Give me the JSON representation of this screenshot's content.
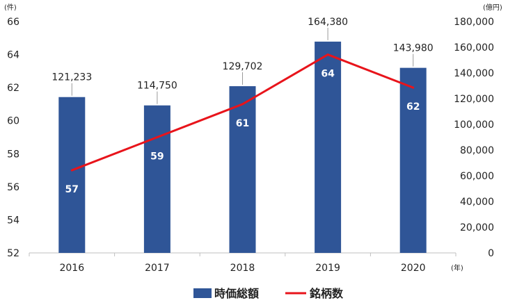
{
  "chart_data": {
    "type": "bar+line",
    "categories": [
      "2016",
      "2017",
      "2018",
      "2019",
      "2020"
    ],
    "series": [
      {
        "name": "時価総額",
        "type": "bar",
        "axis": "right",
        "color": "#2f5597",
        "values": [
          121233,
          114750,
          129702,
          164380,
          143980
        ],
        "labels": [
          "121,233",
          "114,750",
          "129,702",
          "164,380",
          "143,980"
        ]
      },
      {
        "name": "銘柄数",
        "type": "line",
        "axis": "left",
        "color": "#e8141b",
        "values": [
          57,
          59,
          61,
          64,
          62
        ],
        "labels": [
          "57",
          "59",
          "61",
          "64",
          "62"
        ]
      }
    ],
    "left_axis": {
      "unit": "(件)",
      "ylim": [
        52,
        66
      ],
      "ticks": [
        "52",
        "54",
        "56",
        "58",
        "60",
        "62",
        "64",
        "66"
      ]
    },
    "right_axis": {
      "unit": "(億円)",
      "ylim": [
        0,
        180000
      ],
      "ticks": [
        "0",
        "20,000",
        "40,000",
        "60,000",
        "80,000",
        "100,000",
        "120,000",
        "140,000",
        "160,000",
        "180,000"
      ]
    },
    "x_unit": "(年)",
    "legend_position": "bottom"
  }
}
